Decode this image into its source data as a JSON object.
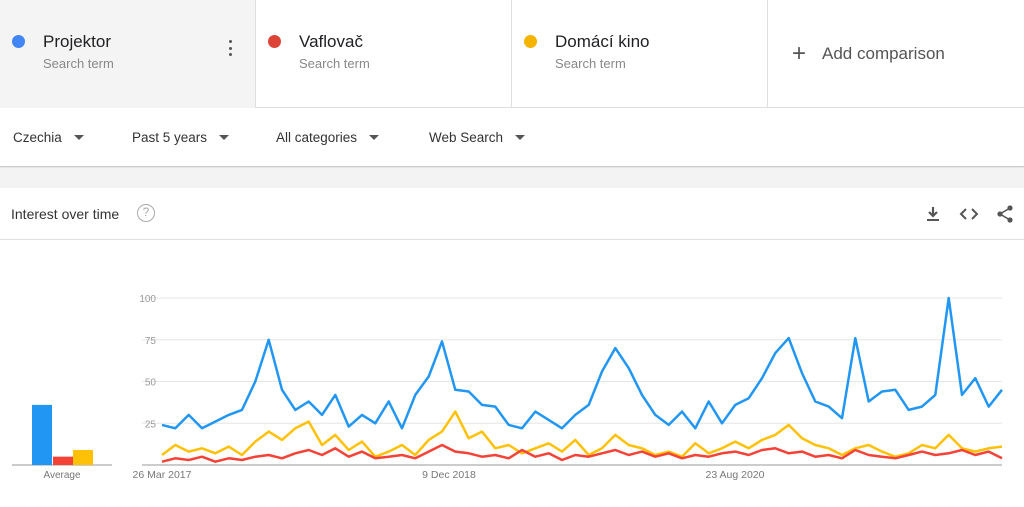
{
  "terms": [
    {
      "name": "Projektor",
      "sub": "Search term",
      "color": "#4285f4"
    },
    {
      "name": "Vaflovač",
      "sub": "Search term",
      "color": "#db4437"
    },
    {
      "name": "Domácí kino",
      "sub": "Search term",
      "color": "#f4b400"
    }
  ],
  "add_comparison": "Add comparison",
  "filters": {
    "region": "Czechia",
    "time": "Past 5 years",
    "category": "All categories",
    "search_type": "Web Search"
  },
  "card": {
    "title": "Interest over time",
    "help": "?",
    "icons": [
      "download-icon",
      "embed-icon",
      "share-icon"
    ]
  },
  "chart_data": {
    "type": "line",
    "title": "Interest over time",
    "ylim": [
      0,
      100
    ],
    "yticks": [
      "100",
      "75",
      "50",
      "25"
    ],
    "xticks": [
      "26 Mar 2017",
      "9 Dec 2018",
      "23 Aug 2020"
    ],
    "x_range": [
      "26 Mar 2017",
      "Mar 2022"
    ],
    "grid": true,
    "average_label": "Average",
    "series": [
      {
        "name": "Projektor",
        "color": "#2196f3",
        "average": 36,
        "values": [
          24,
          22,
          30,
          22,
          26,
          30,
          33,
          50,
          75,
          45,
          33,
          38,
          30,
          42,
          23,
          30,
          25,
          38,
          22,
          42,
          53,
          74,
          45,
          44,
          36,
          35,
          24,
          22,
          32,
          27,
          22,
          30,
          36,
          56,
          70,
          58,
          42,
          30,
          24,
          32,
          22,
          38,
          25,
          36,
          40,
          52,
          67,
          76,
          55,
          38,
          35,
          28,
          76,
          38,
          44,
          45,
          33,
          35,
          42,
          100,
          42,
          52,
          35,
          45
        ]
      },
      {
        "name": "Vaflovač",
        "color": "#f44336",
        "average": 5,
        "values": [
          2,
          4,
          3,
          5,
          2,
          4,
          3,
          5,
          6,
          4,
          7,
          9,
          6,
          10,
          5,
          8,
          4,
          5,
          6,
          4,
          8,
          12,
          8,
          7,
          5,
          6,
          4,
          9,
          5,
          7,
          3,
          6,
          5,
          7,
          9,
          6,
          8,
          5,
          7,
          4,
          6,
          5,
          7,
          8,
          6,
          9,
          10,
          7,
          8,
          5,
          6,
          4,
          9,
          6,
          5,
          4,
          6,
          8,
          6,
          7,
          9,
          6,
          8,
          4
        ]
      },
      {
        "name": "Domácí kino",
        "color": "#ffc107",
        "average": 9,
        "values": [
          6,
          12,
          8,
          10,
          7,
          11,
          6,
          14,
          20,
          15,
          22,
          26,
          12,
          18,
          9,
          14,
          5,
          8,
          12,
          6,
          15,
          20,
          32,
          16,
          20,
          10,
          12,
          7,
          10,
          13,
          8,
          15,
          6,
          10,
          18,
          12,
          10,
          6,
          8,
          5,
          13,
          7,
          10,
          14,
          10,
          15,
          18,
          24,
          16,
          12,
          10,
          6,
          10,
          12,
          8,
          5,
          7,
          12,
          10,
          18,
          10,
          8,
          10,
          11
        ]
      }
    ]
  }
}
